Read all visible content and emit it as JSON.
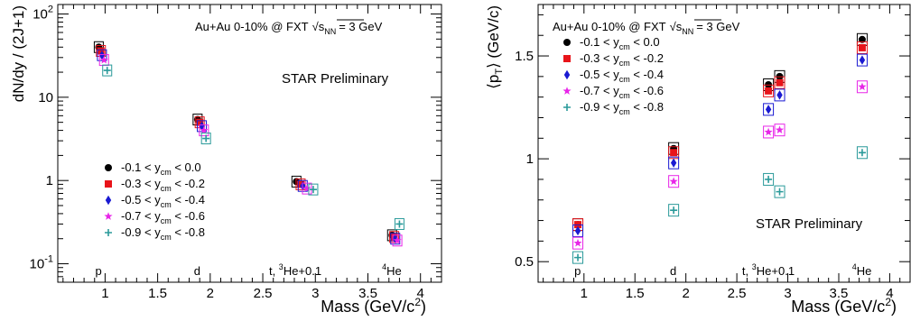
{
  "legend_items": [
    {
      "lo": "-0.1",
      "hi": "0.0",
      "sep": "< ",
      "color": "#000000",
      "marker": "circle"
    },
    {
      "lo": "-0.3",
      "hi": "-0.2",
      "sep": "<",
      "color": "#e8141a",
      "marker": "square"
    },
    {
      "lo": "-0.5",
      "hi": "-0.4",
      "sep": "<",
      "color": "#1a1ad2",
      "marker": "diamond"
    },
    {
      "lo": "-0.7",
      "hi": "-0.6",
      "sep": "<",
      "color": "#e826e8",
      "marker": "star"
    },
    {
      "lo": "-0.9",
      "hi": "-0.8",
      "sep": "<",
      "color": "#2a9a9a",
      "marker": "cross"
    }
  ],
  "legend_var": "y",
  "legend_sub": "cm",
  "collision_text": "Au+Au 0-10% @ FXT",
  "energy_sym": "s",
  "energy_sub": "NN",
  "energy_val": "= 3 GeV",
  "preliminary": "STAR Preliminary",
  "preliminary_color": "#e8141a",
  "chart_data": [
    {
      "type": "scatter",
      "xlabel_main": "Mass (GeV/c",
      "xlabel_sup": "2",
      "xlabel_end": ")",
      "ylabel": "dN/dy / (2J+1)",
      "ylog": true,
      "xlim": [
        0.55,
        4.2
      ],
      "ylim": [
        0.06,
        130
      ],
      "x_ticks": [
        "1",
        "1.5",
        "2",
        "2.5",
        "3",
        "3.5",
        "4"
      ],
      "y_ticks": [
        {
          "value": 0.1,
          "base": "10",
          "exp": "-1"
        },
        {
          "value": 1,
          "base": "1",
          "exp": ""
        },
        {
          "value": 10,
          "base": "10",
          "exp": ""
        },
        {
          "value": 100,
          "base": "10",
          "exp": "2"
        }
      ],
      "particles": [
        {
          "x": 0.938,
          "label": "p"
        },
        {
          "x": 1.876,
          "label": "d"
        },
        {
          "x": 2.809,
          "label_pre": "t, ",
          "label_sup": "3",
          "label_post": "He+0.1"
        },
        {
          "x": 3.727,
          "label_sup": "4",
          "label_post": "He"
        }
      ],
      "series": [
        {
          "x": [
            0.94,
            1.88,
            2.82,
            3.73
          ],
          "y": [
            40,
            5.4,
            0.97,
            0.22
          ]
        },
        {
          "x": [
            0.96,
            1.9,
            2.86,
            3.75
          ],
          "y": [
            36,
            5.0,
            0.9,
            0.21
          ]
        },
        {
          "x": [
            0.97,
            1.92,
            2.88,
            3.76
          ],
          "y": [
            32,
            4.5,
            0.86,
            0.2
          ]
        },
        {
          "x": [
            0.99,
            1.94,
            2.92,
            3.78
          ],
          "y": [
            28,
            4.0,
            0.8,
            0.19
          ]
        },
        {
          "x": [
            1.02,
            1.96,
            2.98,
            3.8
          ],
          "y": [
            21,
            3.2,
            0.78,
            0.3
          ]
        }
      ]
    },
    {
      "type": "scatter",
      "xlabel_main": "Mass (GeV/c",
      "xlabel_sup": "2",
      "xlabel_end": ")",
      "ylabel_pre": "⟨p",
      "ylabel_sub": "T",
      "ylabel_post": "⟩ (GeV/c)",
      "xlim": [
        0.55,
        4.2
      ],
      "ylim": [
        0.4,
        1.75
      ],
      "x_ticks": [
        "1",
        "1.5",
        "2",
        "2.5",
        "3",
        "3.5",
        "4"
      ],
      "y_ticks": [
        "0.5",
        "1",
        "1.5"
      ],
      "particles": [
        {
          "x": 0.938,
          "label": "p"
        },
        {
          "x": 1.876,
          "label": "d"
        },
        {
          "x": 2.809,
          "label_pre": "t, ",
          "label_sup": "3",
          "label_post": "He+0.1"
        },
        {
          "x": 3.727,
          "label_sup": "4",
          "label_post": "He"
        }
      ],
      "series": [
        {
          "x": [
            0.94,
            1.88,
            2.81,
            2.92,
            3.73
          ],
          "y": [
            0.68,
            1.05,
            1.36,
            1.4,
            1.58
          ]
        },
        {
          "x": [
            0.94,
            1.88,
            2.81,
            2.92,
            3.73
          ],
          "y": [
            0.68,
            1.03,
            1.33,
            1.37,
            1.54
          ]
        },
        {
          "x": [
            0.94,
            1.88,
            2.81,
            2.92,
            3.73
          ],
          "y": [
            0.65,
            0.98,
            1.24,
            1.31,
            1.48
          ]
        },
        {
          "x": [
            0.94,
            1.88,
            2.81,
            2.92,
            3.73
          ],
          "y": [
            0.59,
            0.89,
            1.13,
            1.14,
            1.35
          ]
        },
        {
          "x": [
            0.94,
            1.88,
            2.81,
            2.92,
            3.73
          ],
          "y": [
            0.52,
            0.75,
            0.9,
            0.84,
            1.03
          ]
        }
      ]
    }
  ]
}
